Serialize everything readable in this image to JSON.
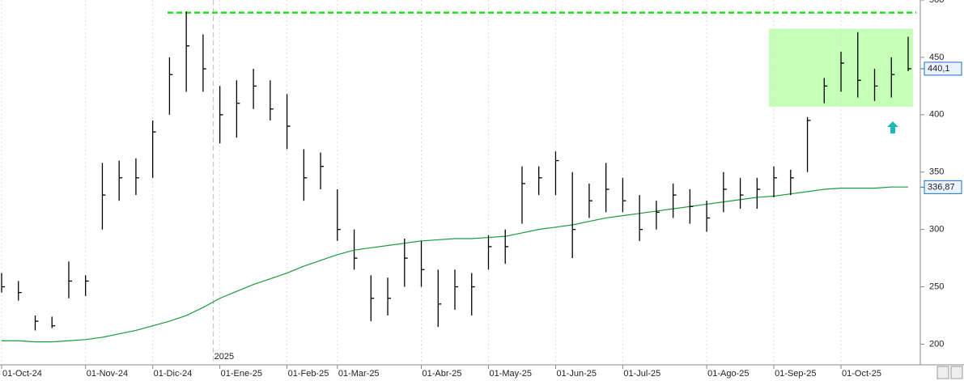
{
  "chart_data": {
    "type": "ohlc",
    "categories": [
      "01-Oct-24",
      null,
      null,
      null,
      null,
      "01-Nov-24",
      null,
      null,
      null,
      "01-Dic-24",
      null,
      null,
      null,
      "01-Ene-25",
      null,
      null,
      null,
      "01-Feb-25",
      null,
      null,
      "01-Mar-25",
      null,
      null,
      null,
      null,
      "01-Abr-25",
      null,
      null,
      null,
      "01-May-25",
      null,
      null,
      null,
      "01-Jun-25",
      null,
      null,
      null,
      "01-Jul-25",
      null,
      null,
      null,
      null,
      "01-Ago-25",
      null,
      null,
      null,
      "01-Sep-25",
      null,
      null,
      null,
      "01-Oct-25",
      null,
      null,
      null,
      null
    ],
    "high": [
      262,
      255,
      225,
      224,
      272,
      260,
      358,
      360,
      362,
      395,
      450,
      490,
      470,
      425,
      430,
      440,
      430,
      418,
      370,
      367,
      335,
      300,
      260,
      258,
      292,
      290,
      265,
      265,
      262,
      295,
      300,
      355,
      355,
      368,
      350,
      340,
      358,
      345,
      330,
      325,
      340,
      335,
      325,
      350,
      345,
      345,
      355,
      352,
      398,
      432,
      455,
      472,
      440,
      450,
      468
    ],
    "low": [
      245,
      238,
      212,
      214,
      240,
      242,
      300,
      325,
      330,
      345,
      400,
      420,
      420,
      375,
      380,
      405,
      395,
      370,
      325,
      335,
      290,
      265,
      220,
      225,
      250,
      250,
      215,
      230,
      225,
      265,
      270,
      305,
      330,
      330,
      275,
      310,
      315,
      315,
      290,
      300,
      310,
      305,
      298,
      315,
      318,
      318,
      328,
      330,
      350,
      410,
      420,
      415,
      412,
      415,
      438
    ],
    "close": [
      250,
      245,
      220,
      216,
      255,
      255,
      330,
      345,
      345,
      385,
      435,
      460,
      440,
      400,
      410,
      425,
      405,
      390,
      345,
      355,
      300,
      275,
      240,
      240,
      275,
      265,
      235,
      250,
      250,
      285,
      285,
      340,
      345,
      360,
      300,
      325,
      335,
      325,
      300,
      315,
      330,
      320,
      310,
      335,
      330,
      335,
      345,
      345,
      395,
      425,
      445,
      430,
      425,
      435,
      440.1
    ],
    "ma": {
      "color": "#1a9a3a",
      "values": [
        203,
        203,
        202,
        202,
        203,
        204,
        206,
        209,
        212,
        216,
        220,
        225,
        232,
        240,
        246,
        252,
        257,
        262,
        268,
        273,
        278,
        282,
        284,
        286,
        288,
        290,
        291,
        292,
        292,
        293,
        294,
        297,
        300,
        302,
        304,
        307,
        310,
        312,
        314,
        316,
        318,
        320,
        322,
        324,
        326,
        328,
        329,
        331,
        333,
        335,
        336,
        336,
        336,
        337,
        337
      ]
    },
    "bar_color": "#000000",
    "ylim": [
      182,
      500
    ],
    "yticks": [
      200,
      250,
      300,
      350,
      400,
      450,
      500
    ],
    "resistance": {
      "value": 489,
      "color": "#22dd22"
    },
    "highlight": {
      "from": 46,
      "to": 54,
      "ylim": [
        407,
        475
      ],
      "color": "#c6ffb8"
    },
    "year_marker": {
      "index": 13,
      "label": "2025"
    },
    "last_labels": [
      {
        "value": 440.1,
        "label": "440,1"
      },
      {
        "value": 336.87,
        "label": "336,87"
      }
    ]
  }
}
